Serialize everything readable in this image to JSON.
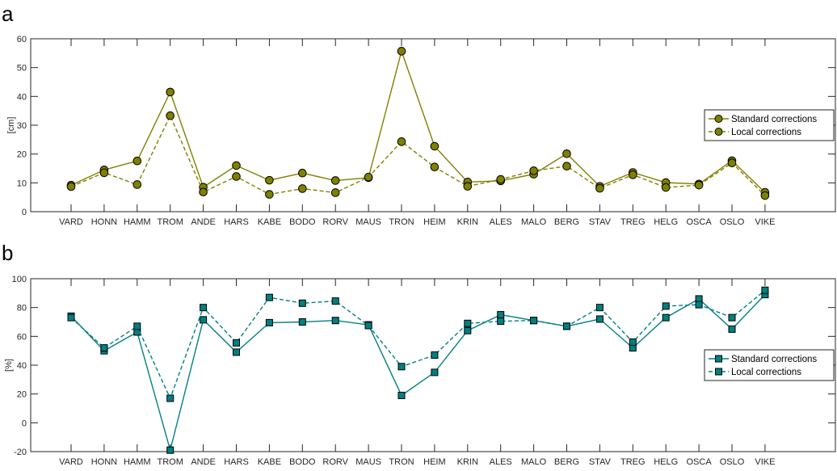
{
  "chart_data": [
    {
      "type": "line",
      "panel_label": "a",
      "ylabel": "[cm]",
      "ylim": [
        0,
        60
      ],
      "yticks": [
        0,
        10,
        20,
        30,
        40,
        50,
        60
      ],
      "categories": [
        "VARD",
        "HONN",
        "HAMM",
        "TROM",
        "ANDE",
        "HARS",
        "KABE",
        "BODO",
        "RORV",
        "MAUS",
        "TRON",
        "HEIM",
        "KRIN",
        "ALES",
        "MALO",
        "BERG",
        "STAV",
        "TREG",
        "HELG",
        "OSCA",
        "OSLO",
        "VIKE"
      ],
      "series": [
        {
          "name": "Standard corrections",
          "line": "solid",
          "values": [
            9.2,
            14.5,
            17.6,
            41.5,
            8.5,
            16.0,
            10.9,
            13.4,
            10.8,
            11.8,
            55.7,
            22.7,
            10.3,
            10.7,
            13.0,
            20.1,
            8.8,
            13.6,
            10.1,
            9.6,
            17.7,
            6.7
          ]
        },
        {
          "name": "Local corrections",
          "line": "dashed",
          "values": [
            8.7,
            13.5,
            9.4,
            33.3,
            6.8,
            12.2,
            6.0,
            8.0,
            6.6,
            12.0,
            24.3,
            15.5,
            8.8,
            11.2,
            14.2,
            15.8,
            8.1,
            12.8,
            8.4,
            9.2,
            16.9,
            5.6
          ]
        }
      ],
      "legend": "right",
      "grid": false,
      "color": "#808000",
      "marker": "circle"
    },
    {
      "type": "line",
      "panel_label": "b",
      "ylabel": "[%]",
      "ylim": [
        -20,
        100
      ],
      "yticks": [
        -20,
        0,
        20,
        40,
        60,
        80,
        100
      ],
      "categories": [
        "VARD",
        "HONN",
        "HAMM",
        "TROM",
        "ANDE",
        "HARS",
        "KABE",
        "BODO",
        "RORV",
        "MAUS",
        "TRON",
        "HEIM",
        "KRIN",
        "ALES",
        "MALO",
        "BERG",
        "STAV",
        "TREG",
        "HELG",
        "OSCA",
        "OSLO",
        "VIKE"
      ],
      "series": [
        {
          "name": "Standard corrections",
          "line": "solid",
          "values": [
            74,
            50,
            63,
            -19,
            71.5,
            49,
            69.5,
            70,
            71,
            68,
            19,
            35,
            64,
            75,
            71,
            67,
            72,
            52,
            73,
            86,
            65,
            89
          ]
        },
        {
          "name": "Local corrections",
          "line": "dashed",
          "values": [
            73,
            52,
            67,
            17,
            80,
            55.5,
            87,
            83,
            84.5,
            67.5,
            39,
            47,
            69,
            70.5,
            71,
            67,
            80,
            56,
            81,
            82,
            73,
            92
          ]
        }
      ],
      "legend": "right",
      "grid": false,
      "color": "#008080",
      "marker": "square"
    }
  ]
}
